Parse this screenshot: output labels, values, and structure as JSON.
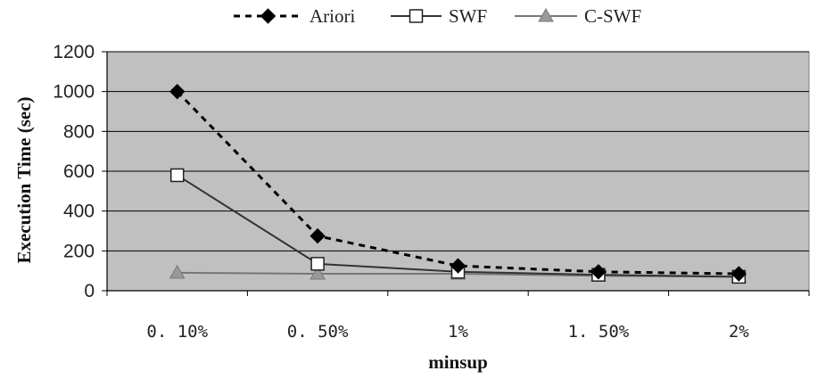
{
  "chart_data": {
    "type": "line",
    "title": "",
    "xlabel": "minsup",
    "ylabel": "Execution Time (sec)",
    "categories": [
      "0.10%",
      "0.50%",
      "1%",
      "1.50%",
      "2%"
    ],
    "ylim": [
      0,
      1200
    ],
    "yticks": [
      0,
      200,
      400,
      600,
      800,
      1000,
      1200
    ],
    "grid": true,
    "plot_background": "#c0c0c0",
    "legend_position": "top",
    "series": [
      {
        "name": "Ariori",
        "values": [
          1000,
          275,
          125,
          95,
          85
        ],
        "color": "#000000",
        "marker": "diamond-filled",
        "line": "dashed"
      },
      {
        "name": "SWF",
        "values": [
          580,
          135,
          95,
          80,
          70
        ],
        "color": "#333333",
        "marker": "square-open",
        "line": "solid"
      },
      {
        "name": "C-SWF",
        "values": [
          90,
          85,
          85,
          75,
          70
        ],
        "color": "#777777",
        "marker": "triangle-gray",
        "line": "solid"
      }
    ]
  }
}
